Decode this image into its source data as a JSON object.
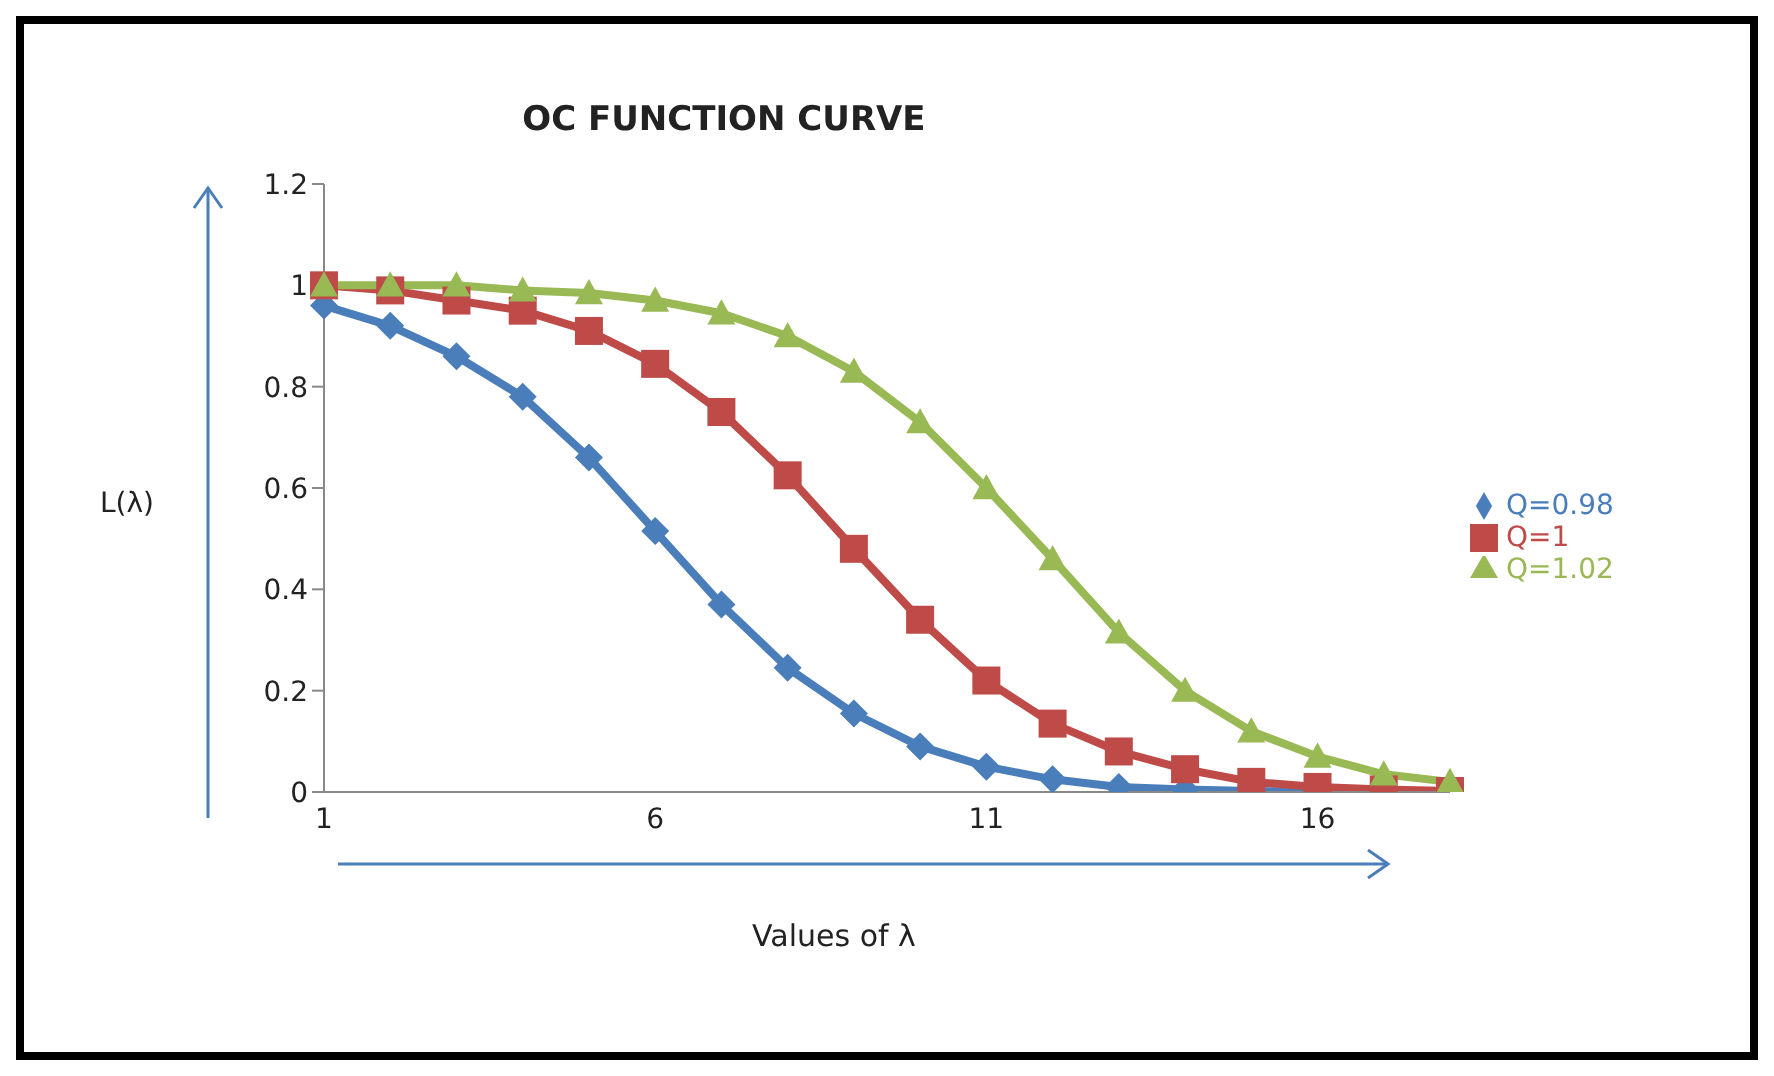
{
  "chart_data": {
    "type": "line",
    "title": "OC FUNCTION CURVE",
    "xlabel": "Values of λ",
    "ylabel": "L(λ)",
    "categories": [
      "1",
      null,
      null,
      null,
      null,
      "6",
      null,
      null,
      null,
      null,
      "11",
      null,
      null,
      null,
      null,
      "16",
      null,
      null
    ],
    "series": [
      {
        "name": "Q=0.98",
        "color": "#4a7ebb",
        "marker": "diamond",
        "values": [
          0.96,
          0.92,
          0.86,
          0.78,
          0.66,
          0.515,
          0.37,
          0.245,
          0.155,
          0.09,
          0.05,
          0.025,
          0.01,
          0.005,
          0.002,
          0.001,
          0,
          0
        ]
      },
      {
        "name": "Q=1",
        "color": "#be4b48",
        "marker": "square",
        "values": [
          1,
          0.99,
          0.97,
          0.95,
          0.91,
          0.845,
          0.75,
          0.625,
          0.48,
          0.34,
          0.22,
          0.135,
          0.08,
          0.045,
          0.02,
          0.01,
          0.005,
          0.002
        ]
      },
      {
        "name": "Q=1.02",
        "color": "#98b954",
        "marker": "triangle",
        "values": [
          1,
          1,
          1,
          0.99,
          0.985,
          0.97,
          0.945,
          0.9,
          0.83,
          0.73,
          0.6,
          0.46,
          0.315,
          0.2,
          0.12,
          0.07,
          0.035,
          0.02
        ]
      }
    ],
    "ylim": [
      0,
      1.2
    ],
    "yticks": [
      0,
      0.2,
      0.4,
      0.6,
      0.8,
      1,
      1.2
    ],
    "grid": false,
    "legend": "right"
  }
}
